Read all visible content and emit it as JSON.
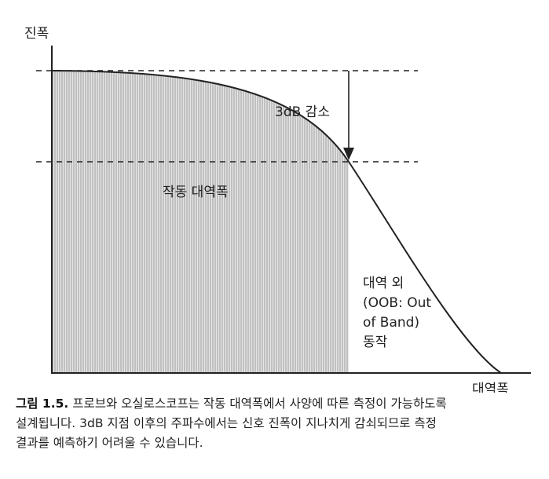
{
  "labels": {
    "y_axis": "진폭",
    "x_axis": "대역폭",
    "attenuation": "3dB 감소",
    "operating_band": "작동 대역폭",
    "out_of_band": [
      "대역 외",
      "(OOB: Out",
      "of Band)",
      "동작"
    ]
  },
  "caption": {
    "label": "그림 1.5.",
    "lines": [
      "프로브와 오실로스코프는 작동 대역폭에서 사양에 따른 측정이 가능하도록",
      "설계됩니다. 3dB 지점 이후의 주파수에서는 신호 진폭이 지나치게 감쇠되므로 측정",
      "결과를 예측하기 어려울 수 있습니다."
    ]
  },
  "colors": {
    "ink": "#222222",
    "fill_hatch": "#9a9a9a",
    "fill_bg": "#e6e6e6"
  }
}
